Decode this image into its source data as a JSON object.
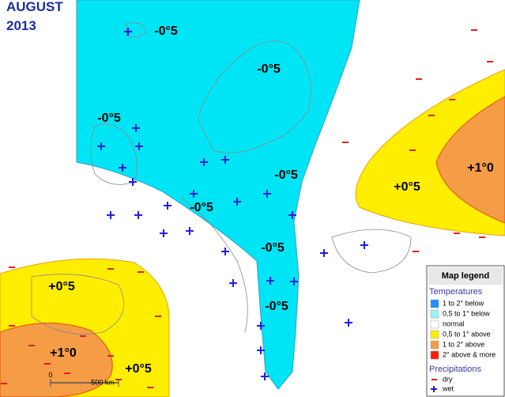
{
  "title": {
    "month": "AUGUST",
    "year": "2013"
  },
  "anomaly_labels": [
    "-0°5",
    "-0°5",
    "-0°5",
    "-0°5",
    "-0°5",
    "-0°5",
    "-0°5",
    "+0°5",
    "+0°5",
    "+0°5",
    "+1°0",
    "+1°0"
  ],
  "scale_bar": {
    "start": "0",
    "end": "500 km"
  },
  "legend": {
    "title": "Map legend",
    "temperatures_heading": "Temperatures",
    "temperature_items": [
      "1 to 2° below",
      "0,5 to 1° below",
      "normal",
      "0,5 to 1° above",
      "1 to 2° above",
      "2° above & more"
    ],
    "precipitations_heading": "Precipitations",
    "precipitation_items": [
      "dry",
      "wet"
    ]
  }
}
